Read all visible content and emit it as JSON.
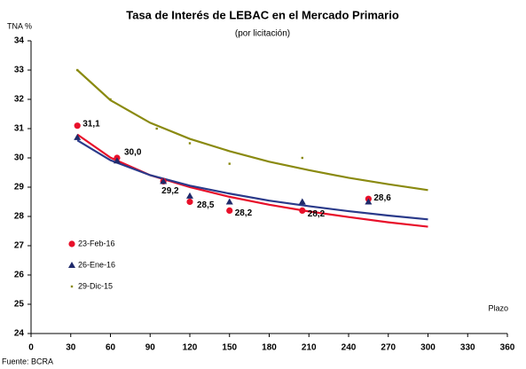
{
  "chart_data": {
    "type": "scatter",
    "title": "Tasa de Interés de LEBAC en el Mercado Primario",
    "subtitle": "(por licitación)",
    "y_label": "TNA %",
    "x_label": "Plazo",
    "source": "Fuente: BCRA",
    "xlim": [
      0,
      360
    ],
    "xticks": [
      0,
      30,
      60,
      90,
      120,
      150,
      180,
      210,
      240,
      270,
      300,
      330,
      360
    ],
    "ylim": [
      24,
      34
    ],
    "yticks": [
      24,
      25,
      26,
      27,
      28,
      29,
      30,
      31,
      32,
      33,
      34
    ],
    "grid": false,
    "legend": "left",
    "series": [
      {
        "name": "23-Feb-16",
        "color": "#e8102a",
        "marker": "circle",
        "x": [
          35,
          65,
          100,
          120,
          150,
          205,
          255
        ],
        "values": [
          31.1,
          30.0,
          29.2,
          28.5,
          28.2,
          28.2,
          28.6
        ],
        "value_labels": [
          "31,1",
          "30,0",
          "29,2",
          "28,5",
          "28,2",
          "28,2",
          "28,6"
        ]
      },
      {
        "name": "26-Ene-16",
        "color": "#1f2a6b",
        "marker": "triangle",
        "x": [
          35,
          65,
          100,
          120,
          150,
          205,
          255
        ],
        "values": [
          30.7,
          29.9,
          29.2,
          28.7,
          28.5,
          28.5,
          28.5
        ]
      },
      {
        "name": "29-Dic-15",
        "color": "#8a8a10",
        "marker": "dot",
        "x": [
          35,
          60,
          95,
          120,
          150,
          205
        ],
        "values": [
          33.0,
          32.0,
          31.0,
          30.5,
          29.8,
          30.0
        ]
      }
    ],
    "trendlines": [
      {
        "color": "#e8102a",
        "x": [
          35,
          60,
          90,
          120,
          150,
          180,
          210,
          240,
          270,
          300
        ],
        "values": [
          30.8,
          30.01,
          29.41,
          29.0,
          28.67,
          28.4,
          28.17,
          27.98,
          27.8,
          27.65
        ]
      },
      {
        "color": "#2a3a8a",
        "x": [
          35,
          60,
          90,
          120,
          150,
          180,
          210,
          240,
          270,
          300
        ],
        "values": [
          30.6,
          29.92,
          29.41,
          29.05,
          28.78,
          28.54,
          28.35,
          28.18,
          28.03,
          27.9
        ]
      },
      {
        "color": "#8a8a10",
        "x": [
          35,
          60,
          90,
          120,
          150,
          180,
          210,
          240,
          270,
          300
        ],
        "values": [
          33.0,
          31.97,
          31.2,
          30.65,
          30.23,
          29.87,
          29.58,
          29.32,
          29.1,
          28.9
        ]
      }
    ]
  }
}
